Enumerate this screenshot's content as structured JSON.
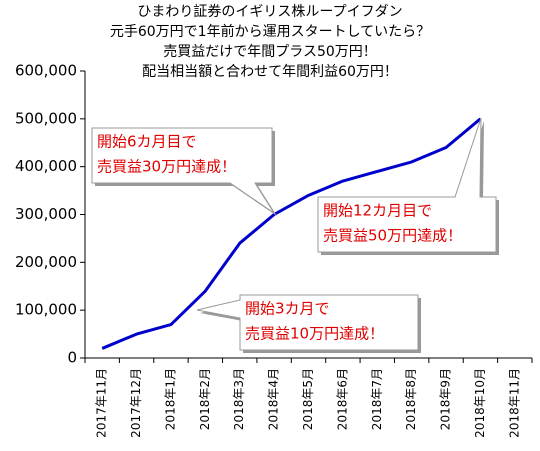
{
  "chart_data": {
    "type": "line",
    "title": [
      "ひまわり証券のイギリス株ループイフダン",
      "元手60万円で1年前から運用スタートしていたら？",
      "売買益だけで年間プラス50万円！",
      "配当相当額と合わせて年間利益60万円！"
    ],
    "categories": [
      "2017年11月",
      "2017年12月",
      "2018年1月",
      "2018年2月",
      "2018年3月",
      "2018年4月",
      "2018年5月",
      "2018年6月",
      "2018年7月",
      "2018年8月",
      "2018年9月",
      "2018年10月",
      "2018年11月"
    ],
    "series": [
      {
        "color": "#0000cc",
        "values": [
          20000,
          50000,
          70000,
          140000,
          240000,
          300000,
          340000,
          370000,
          390000,
          410000,
          440000,
          500000,
          null
        ]
      }
    ],
    "ylim": [
      0,
      600000
    ],
    "yticks": [
      0,
      {
        "value": 100000,
        "label": "100,000"
      },
      {
        "value": 200000,
        "label": "200,000"
      },
      {
        "value": 300000,
        "label": "300,000"
      },
      {
        "value": 400000,
        "label": "400,000"
      },
      {
        "value": 500000,
        "label": "500,000"
      },
      {
        "value": 600000,
        "label": "600,000"
      }
    ],
    "annotations": [
      {
        "lines": [
          "開始6カ月目で",
          "売買益30万円達成！"
        ]
      },
      {
        "lines": [
          "開始12カ月目で",
          "売買益50万円達成！"
        ]
      },
      {
        "lines": [
          "開始3カ月で",
          "売買益10万円達成！"
        ]
      }
    ]
  }
}
